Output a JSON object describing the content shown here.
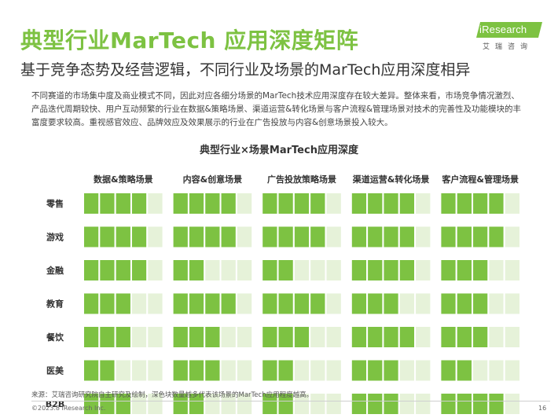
{
  "header": {
    "title": "典型行业MarTech 应用深度矩阵",
    "subtitle": "基于竞争态势及经营逻辑，不同行业及场景的MarTech应用深度相异",
    "logo_text": "iResearch",
    "logo_sub": "艾瑞咨询"
  },
  "description": "不同赛道的市场集中度及商业模式不同，因此对应各细分场景的MarTech技术应用深度存在较大差异。整体来看，市场竞争情况激烈、产品迭代周期较快、用户互动频繁的行业在数据&策略场景、渠道运营&转化场景与客户流程&管理场景对技术的完善性及功能模块的丰富度要求较高。重视感官效应、品牌效应及效果展示的行业在广告投放与内容&创意场景投入较大。",
  "colors": {
    "brand": "#7dc242",
    "filled": "#7dc242",
    "empty": "#e6f2d9",
    "separator": "#ffffff"
  },
  "chart_data": {
    "type": "heatmap",
    "title": "典型行业×场景MarTech应用深度",
    "scenarios": [
      "数据&策略场景",
      "内容&创意场景",
      "广告投放策略场景",
      "渠道运营&转化场景",
      "客户流程&管理场景"
    ],
    "industries": [
      "零售",
      "游戏",
      "金融",
      "教育",
      "餐饮",
      "医美",
      "B2B"
    ],
    "max_level": 5,
    "values": [
      [
        4,
        4,
        4,
        4,
        4
      ],
      [
        4,
        4,
        4,
        4,
        4
      ],
      [
        4,
        2,
        2,
        4,
        3
      ],
      [
        3,
        4,
        4,
        3,
        3
      ],
      [
        3,
        3,
        3,
        4,
        3
      ],
      [
        2,
        3,
        2,
        3,
        2
      ],
      [
        3,
        2,
        2,
        3,
        4
      ]
    ],
    "legend_note": "深色块数量越多代表该场景的MarTech应用程度越高"
  },
  "footer": {
    "source": "来源：艾瑞咨询研究院自主研究及绘制，深色块数量越多代表该场景的MarTech应用程度越高。",
    "copyright": "©2023.8 iResearch Inc.",
    "page_number": "16"
  }
}
